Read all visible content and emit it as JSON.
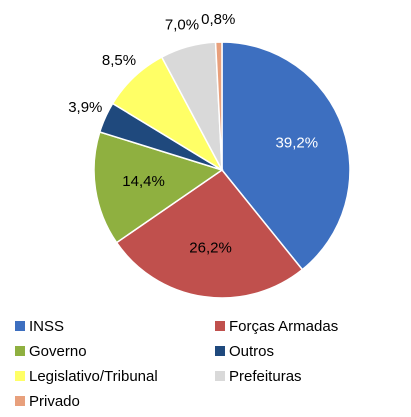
{
  "chart_data": {
    "type": "pie",
    "categories": [
      "INSS",
      "Forças Armadas",
      "Governo",
      "Outros",
      "Legislativo/Tribunal",
      "Prefeituras",
      "Privado"
    ],
    "values": [
      39.2,
      26.2,
      14.4,
      3.9,
      8.5,
      7.0,
      0.8
    ],
    "value_labels": [
      "39,2%",
      "26,2%",
      "14,4%",
      "3,9%",
      "8,5%",
      "7,0%",
      "0,8%"
    ],
    "colors": [
      "#3d6fc0",
      "#c0504d",
      "#8fb040",
      "#1f497d",
      "#ffff66",
      "#d9d9d9",
      "#e8a07c"
    ],
    "legend": "bottom"
  }
}
